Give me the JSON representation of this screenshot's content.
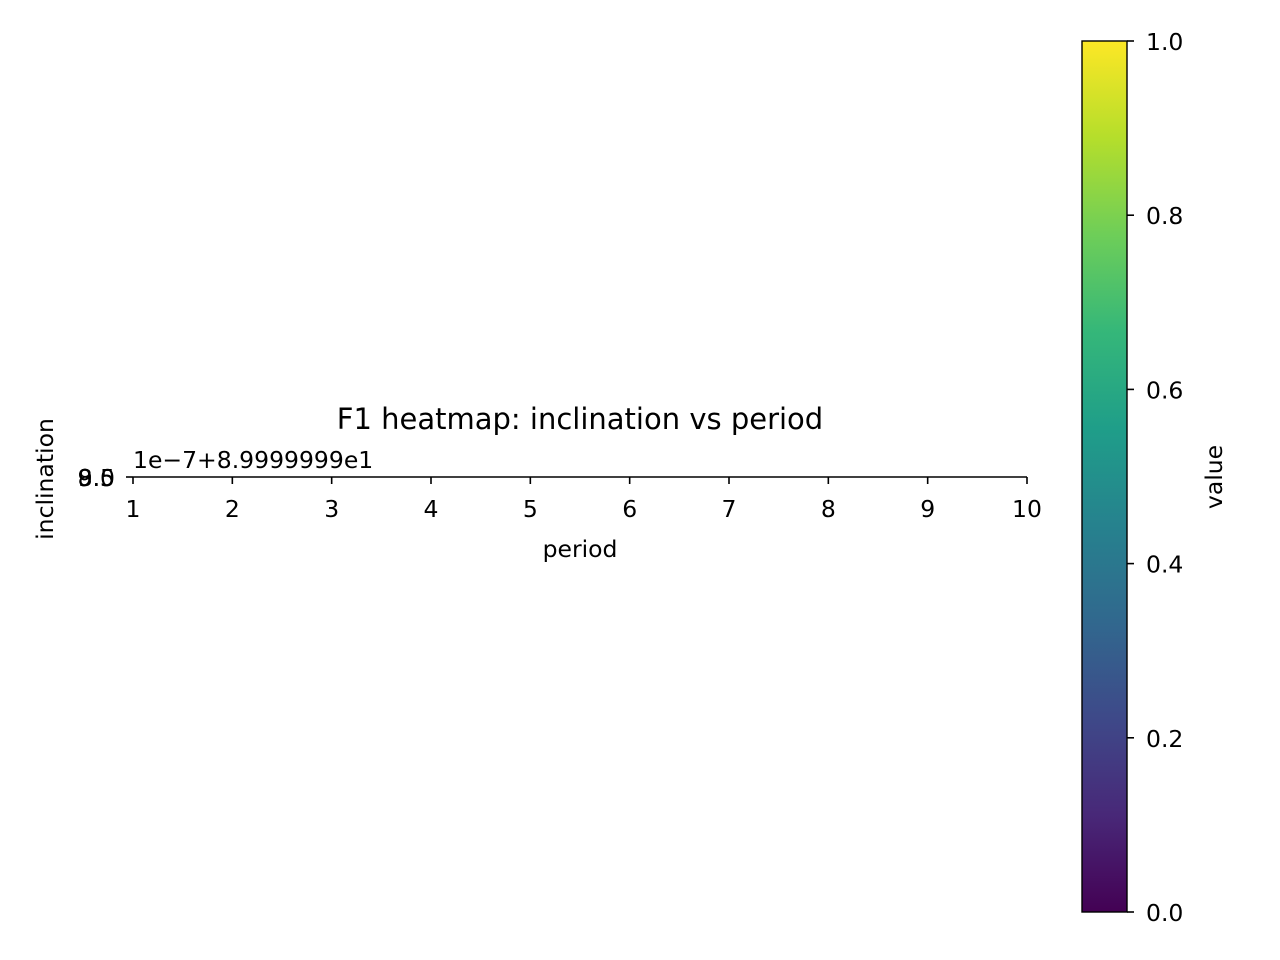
{
  "chart_data": {
    "type": "heatmap",
    "title": "F1 heatmap: inclination vs period",
    "xlabel": "period",
    "ylabel": "inclination",
    "xlim": [
      1,
      10
    ],
    "x_ticks": [
      "1",
      "2",
      "3",
      "4",
      "5",
      "6",
      "7",
      "8",
      "9",
      "10"
    ],
    "y_ticks": [
      "9.5",
      "8.5",
      "9.0"
    ],
    "y_offset_text": "1e−7+8.9999999e1",
    "values": [],
    "colorbar": {
      "label": "value",
      "range": [
        0.0,
        1.0
      ],
      "ticks": [
        "0.0",
        "0.2",
        "0.4",
        "0.6",
        "0.8",
        "1.0"
      ],
      "colormap": "viridis",
      "colors": [
        "#440154",
        "#482878",
        "#3e4989",
        "#31688e",
        "#26828e",
        "#1f9e89",
        "#35b779",
        "#6ece58",
        "#b5de2b",
        "#fde725"
      ]
    }
  }
}
